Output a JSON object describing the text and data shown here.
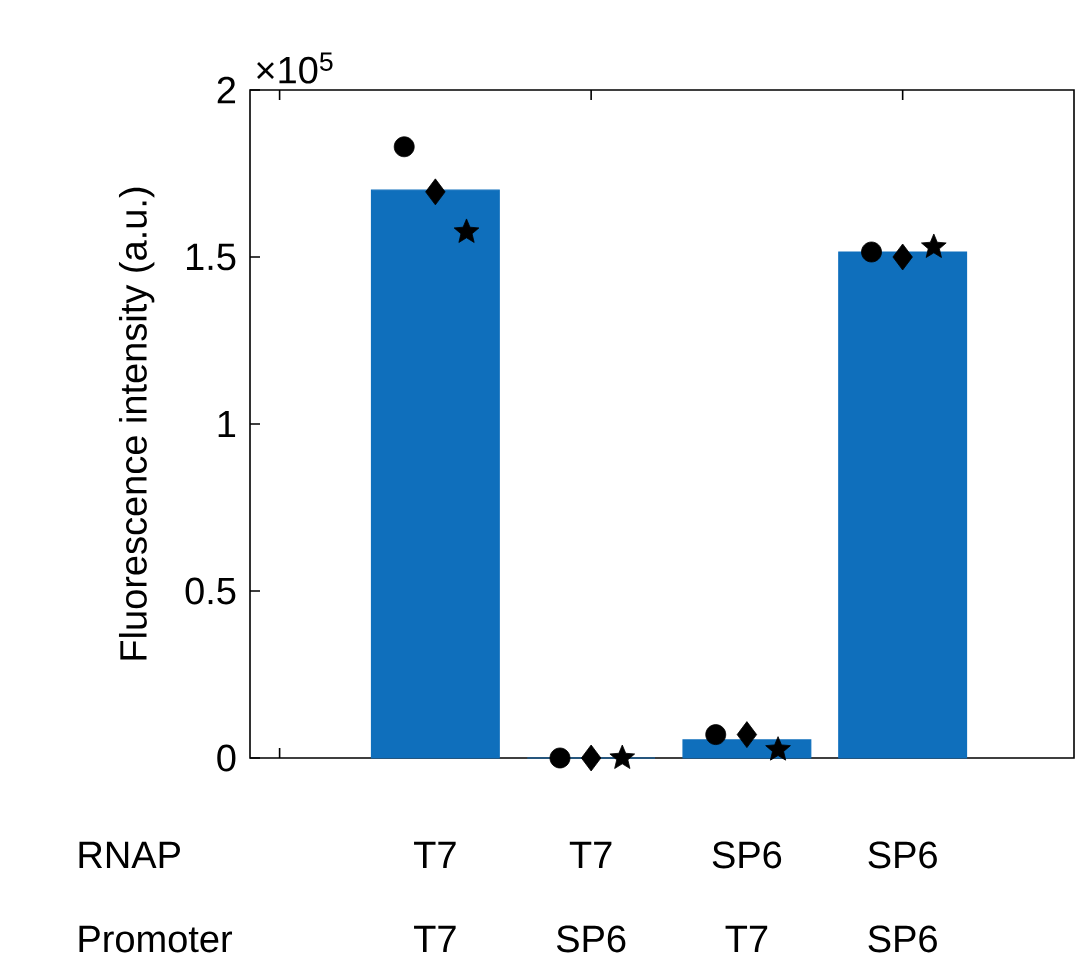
{
  "chart_data": {
    "type": "bar",
    "ylabel": "Fluorescence intensity (a.u.)",
    "categories": [
      "T7",
      "T7",
      "SP6",
      "SP6"
    ],
    "values": [
      1.7,
      0,
      0.054,
      1.515
    ],
    "color": "#0f6fbc",
    "series": [
      {
        "type": "scatter",
        "marker": "circle",
        "color": "#000000",
        "values": [
          1.83,
          0,
          0.07,
          1.515
        ]
      },
      {
        "type": "scatter",
        "marker": "diamond",
        "color": "#000000",
        "values": [
          1.695,
          0,
          0.07,
          1.5
        ]
      },
      {
        "type": "scatter",
        "marker": "star",
        "color": "#000000",
        "values": [
          1.575,
          0,
          0.025,
          1.53
        ]
      }
    ],
    "ylim": [
      0,
      2
    ],
    "yticks": [
      0,
      0.5,
      1,
      1.5,
      2
    ],
    "annotations": [
      "×10$^{5}$",
      "RNAP",
      "Promoter",
      "T7",
      "SP6",
      "T7",
      "SP6"
    ]
  }
}
